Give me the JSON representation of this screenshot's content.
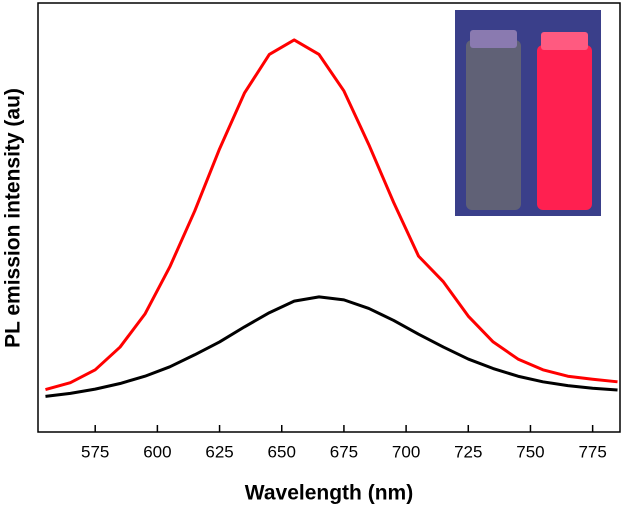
{
  "chart_data": {
    "type": "line",
    "x_label": "Wavelength (nm)",
    "y_label": "PL emission intensity (au)",
    "x": [
      555,
      565,
      575,
      585,
      595,
      605,
      615,
      625,
      635,
      645,
      655,
      665,
      675,
      685,
      695,
      705,
      715,
      725,
      735,
      745,
      755,
      765,
      775,
      785
    ],
    "series": [
      {
        "color": "#ff0000",
        "values": [
          9.9,
          11.5,
          14.5,
          19.8,
          27.5,
          38.5,
          51.5,
          66,
          79,
          88,
          91.4,
          88,
          79.5,
          67,
          53.5,
          41,
          35,
          27,
          21,
          17,
          14.5,
          13,
          12.3,
          11.7
        ]
      },
      {
        "color": "#000000",
        "values": [
          8.3,
          9,
          10,
          11.3,
          13,
          15.2,
          18,
          21,
          24.5,
          27.8,
          30.5,
          31.5,
          30.8,
          28.8,
          26,
          22.8,
          19.8,
          17,
          14.8,
          13,
          11.7,
          10.8,
          10.2,
          9.8
        ]
      }
    ],
    "xlim": [
      552,
      786
    ],
    "xticks": [
      575,
      600,
      625,
      650,
      675,
      700,
      725,
      750,
      775
    ],
    "ylim": [
      0,
      100
    ],
    "grid": false
  }
}
